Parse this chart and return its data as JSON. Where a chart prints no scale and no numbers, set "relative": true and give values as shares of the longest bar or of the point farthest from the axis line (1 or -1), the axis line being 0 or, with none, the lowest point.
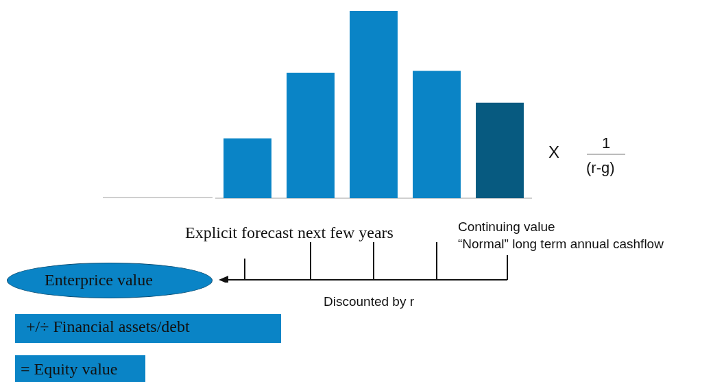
{
  "chart_data": {
    "type": "bar",
    "relative": true,
    "tick_labels": false,
    "grid": false,
    "legend": false,
    "categories": [
      null,
      null,
      null,
      null,
      null
    ],
    "values": [
      0.32,
      0.67,
      1,
      0.68,
      0.51
    ],
    "colors": [
      "#0a84c6",
      "#0a84c6",
      "#0a84c6",
      "#0a84c6",
      "#075a80"
    ],
    "annotations": [
      "X",
      "1",
      "(r-g)",
      "Explicit forecast next few years",
      "Continuing value",
      "“Normal” long term annual cashflow",
      "Enterprice value",
      "Discounted by r",
      "+/÷ Financial assets/debt",
      "= Equity value"
    ]
  }
}
